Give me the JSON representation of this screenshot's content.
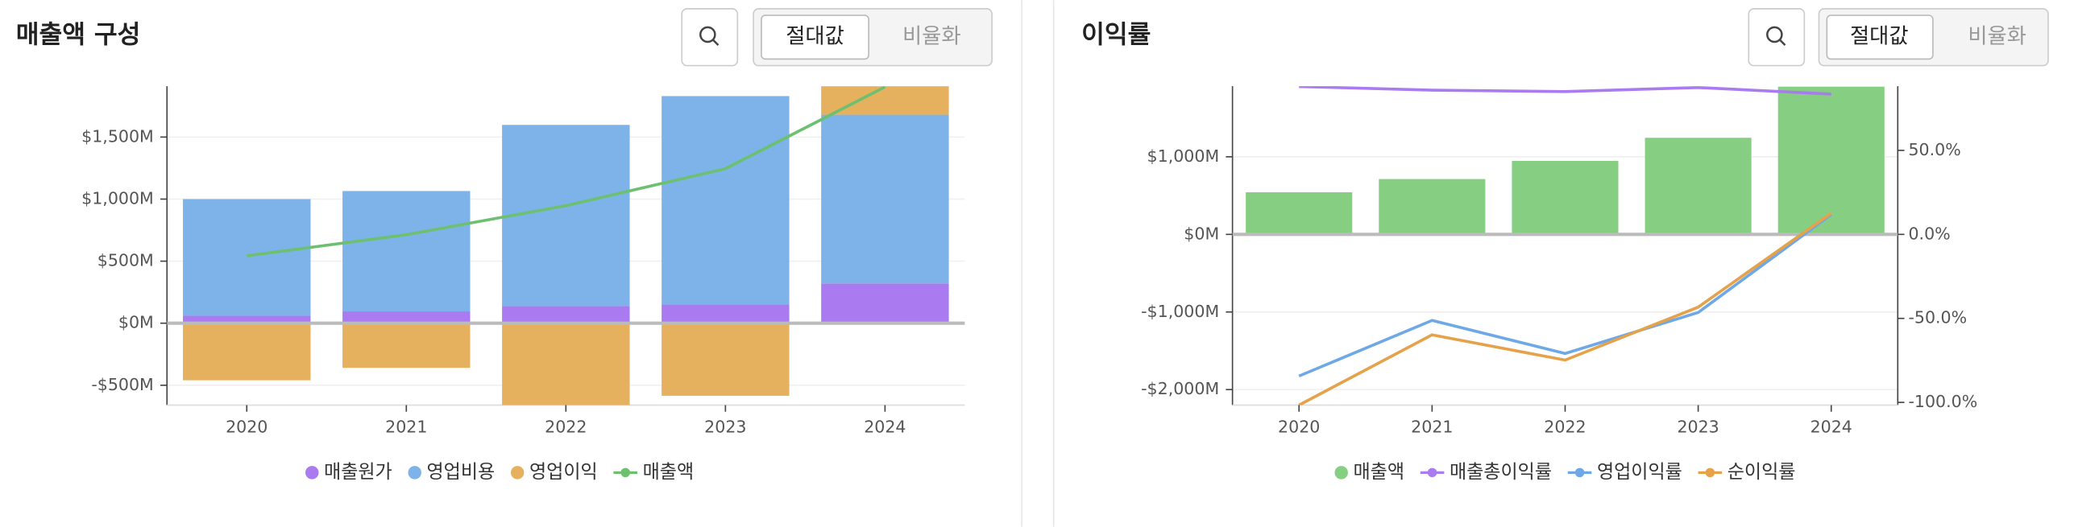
{
  "panels": [
    {
      "toggle_options": [
        "절대값",
        "비율화"
      ]
    },
    {
      "toggle_options": [
        "절대값",
        "비율화"
      ]
    }
  ],
  "chart_data": [
    {
      "type": "bar",
      "stacked": true,
      "title": "매출액 구성",
      "categories": [
        "2020",
        "2021",
        "2022",
        "2023",
        "2024"
      ],
      "series": [
        {
          "name": "매출원가",
          "color": "#a97af0",
          "values": [
            60,
            95,
            138,
            150,
            320
          ]
        },
        {
          "name": "영업비용",
          "color": "#7db3e8",
          "values": [
            940,
            970,
            1460,
            1680,
            1360
          ]
        },
        {
          "name": "영업이익",
          "color": "#e5b15e",
          "values": [
            -460,
            -360,
            -660,
            -585,
            230
          ]
        },
        {
          "name": "매출액",
          "color": "#6cc070",
          "type": "line",
          "values": [
            543,
            713,
            947,
            1245,
            1904
          ]
        }
      ],
      "ylim": [
        -660,
        1910
      ],
      "yticks": [
        {
          "value": -500,
          "label": "-$500M"
        },
        {
          "value": 0,
          "label": "$0M"
        },
        {
          "value": 500,
          "label": "$500M"
        },
        {
          "value": 1000,
          "label": "$1,000M"
        },
        {
          "value": 1500,
          "label": "$1,500M"
        }
      ],
      "grid": true
    },
    {
      "type": "bar",
      "title": "이익률",
      "categories": [
        "2020",
        "2021",
        "2022",
        "2023",
        "2024"
      ],
      "series": [
        {
          "name": "매출액",
          "color": "#86cf82",
          "values": [
            543,
            713,
            947,
            1245,
            1904
          ]
        },
        {
          "name": "매출총이익률",
          "color": "#a97af0",
          "type": "line",
          "axis": "y2",
          "values": [
            88,
            85.8,
            85,
            87.4,
            83.5
          ]
        },
        {
          "name": "영업이익률",
          "color": "#6fa8e6",
          "type": "line",
          "axis": "y2",
          "values": [
            -84.3,
            -51.2,
            -70.9,
            -46.5,
            11.8
          ]
        },
        {
          "name": "순이익률",
          "color": "#e5a24a",
          "type": "line",
          "axis": "y2",
          "values": [
            -101.6,
            -59.8,
            -74.8,
            -43.3,
            12.6
          ]
        }
      ],
      "ylim": [
        -2200,
        1910
      ],
      "yticks": [
        {
          "value": -2000,
          "label": "-$2,000M"
        },
        {
          "value": -1000,
          "label": "-$1,000M"
        },
        {
          "value": 0,
          "label": "$0M"
        },
        {
          "value": 1000,
          "label": "$1,000M"
        }
      ],
      "y2lim": [
        -101.6,
        88.2
      ],
      "y2ticks": [
        {
          "value": -100,
          "label": "-100.0%"
        },
        {
          "value": -50,
          "label": "-50.0%"
        },
        {
          "value": 0,
          "label": "0.0%"
        },
        {
          "value": 50,
          "label": "50.0%"
        }
      ],
      "grid": true
    }
  ]
}
